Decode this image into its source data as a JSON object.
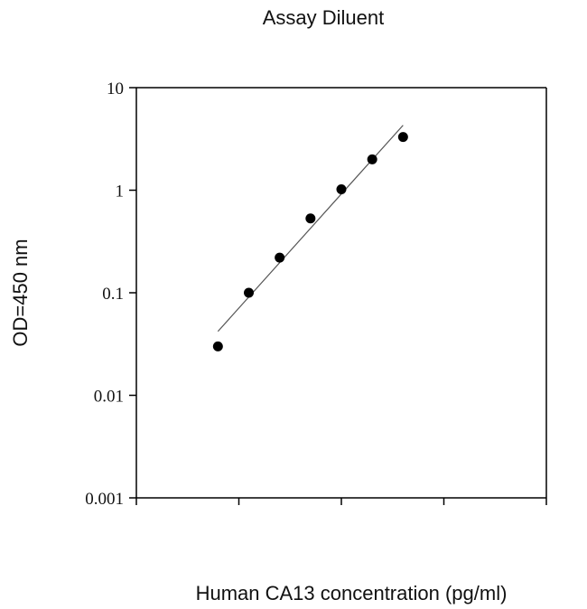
{
  "chart_data": {
    "type": "scatter",
    "title": "Assay Diluent",
    "xlabel": "Human CA13 concentration (pg/ml)",
    "ylabel": "OD=450 nm",
    "x_scale": "log",
    "y_scale": "log",
    "x_tick_labels": [],
    "y_tick_labels": [
      "10",
      "1",
      "0.1",
      "0.01",
      "0.001"
    ],
    "ylim": [
      0.001,
      10
    ],
    "xlim": [
      10,
      100000
    ],
    "grid": false,
    "legend": "none",
    "series": [
      {
        "x": [
          62.5,
          125,
          250,
          500,
          1000,
          2000,
          4000
        ],
        "y": [
          0.03,
          0.1,
          0.22,
          0.53,
          1.02,
          2.0,
          3.3
        ]
      }
    ],
    "fit_line": {
      "x": [
        62.5,
        4000
      ],
      "y": [
        0.042,
        4.3
      ]
    },
    "colors": {
      "points": "#000000",
      "line": "#555555",
      "axis": "#000000"
    }
  }
}
